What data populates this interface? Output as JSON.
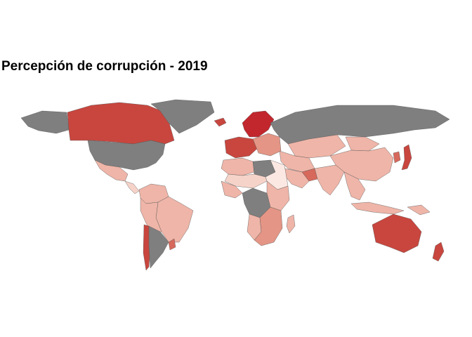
{
  "title": "Percepción de corrupción - 2019",
  "colors": {
    "no_data": "#7f7f7f",
    "very_high": "#c1272d",
    "high": "#c8463e",
    "mid_high": "#d7685c",
    "mid": "#e49585",
    "mid_low": "#efb5a8",
    "low": "#f6d3c9",
    "very_low": "#fbe8e2",
    "background": "#ffffff"
  },
  "regions": [
    {
      "name": "Canada",
      "level": "high"
    },
    {
      "name": "Alaska",
      "level": "no_data"
    },
    {
      "name": "United States",
      "level": "no_data"
    },
    {
      "name": "Greenland",
      "level": "no_data"
    },
    {
      "name": "Mexico",
      "level": "mid_low"
    },
    {
      "name": "Central America",
      "level": "low"
    },
    {
      "name": "Colombia / Venezuela",
      "level": "mid_low"
    },
    {
      "name": "Brazil",
      "level": "mid_low"
    },
    {
      "name": "Peru / Bolivia",
      "level": "mid_low"
    },
    {
      "name": "Argentina",
      "level": "no_data"
    },
    {
      "name": "Chile",
      "level": "high"
    },
    {
      "name": "Uruguay",
      "level": "mid_high"
    },
    {
      "name": "Scandinavia",
      "level": "very_high"
    },
    {
      "name": "Iceland / UK",
      "level": "high"
    },
    {
      "name": "Western Europe",
      "level": "high"
    },
    {
      "name": "Eastern Europe",
      "level": "mid"
    },
    {
      "name": "Russia",
      "level": "no_data"
    },
    {
      "name": "Kazakhstan / Central Asia",
      "level": "mid_low"
    },
    {
      "name": "China",
      "level": "mid_low"
    },
    {
      "name": "Mongolia",
      "level": "mid_low"
    },
    {
      "name": "Japan",
      "level": "high"
    },
    {
      "name": "Korea",
      "level": "mid_high"
    },
    {
      "name": "India",
      "level": "mid_low"
    },
    {
      "name": "Middle East",
      "level": "mid_low"
    },
    {
      "name": "Saudi Arabia",
      "level": "mid_low"
    },
    {
      "name": "Gulf States",
      "level": "mid_high"
    },
    {
      "name": "North Africa",
      "level": "mid_low"
    },
    {
      "name": "Libya",
      "level": "no_data"
    },
    {
      "name": "Sahel",
      "level": "low"
    },
    {
      "name": "Sudan",
      "level": "very_low"
    },
    {
      "name": "West Africa",
      "level": "mid_low"
    },
    {
      "name": "Congo / Central Africa",
      "level": "no_data"
    },
    {
      "name": "East Africa",
      "level": "mid_low"
    },
    {
      "name": "Southern Africa",
      "level": "mid"
    },
    {
      "name": "Namibia / Angola",
      "level": "mid_low"
    },
    {
      "name": "Madagascar",
      "level": "mid_low"
    },
    {
      "name": "Southeast Asia",
      "level": "mid_low"
    },
    {
      "name": "Indonesia",
      "level": "mid_low"
    },
    {
      "name": "Papua New Guinea",
      "level": "mid_low"
    },
    {
      "name": "Australia",
      "level": "high"
    },
    {
      "name": "New Zealand",
      "level": "high"
    },
    {
      "name": "Arabian Peninsula east",
      "level": "mid"
    }
  ]
}
